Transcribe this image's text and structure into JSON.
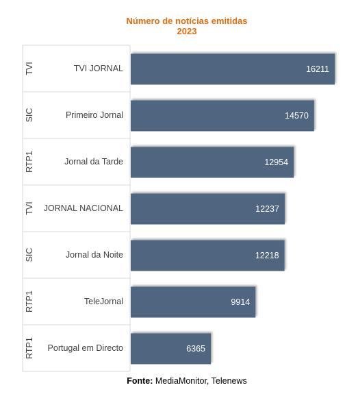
{
  "chart_data": {
    "type": "bar",
    "orientation": "horizontal",
    "title": "Número de notícias emitidas",
    "subtitle": "2023",
    "groups": [
      "TVI",
      "SIC",
      "RTP1",
      "TVI",
      "SIC",
      "RTP1",
      "RTP1"
    ],
    "categories": [
      "TVI JORNAL",
      "Primeiro Jornal",
      "Jornal da Tarde",
      "JORNAL NACIONAL",
      "Jornal da Noite",
      "TeleJornal",
      "Portugal em Directo"
    ],
    "values": [
      16211,
      14570,
      12954,
      12237,
      12218,
      9914,
      6365
    ],
    "xlim": [
      0,
      16211
    ],
    "grid": false,
    "legend": "none",
    "colors": {
      "bar": "#4F6580",
      "title": "#E46C0A",
      "value_label": "#ffffff",
      "gridline": "#d9d9d9",
      "text": "#404040"
    }
  },
  "footer": {
    "label": "Fonte:",
    "text": " MediaMonitor, Telenews"
  }
}
